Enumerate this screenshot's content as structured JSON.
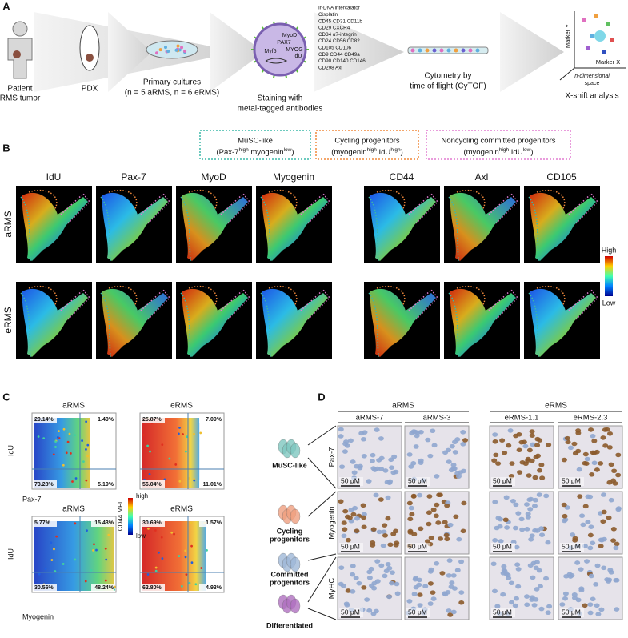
{
  "panel_a": {
    "label": "A",
    "patient": [
      "Patient",
      "RMS tumor"
    ],
    "pdx": "PDX",
    "cultures": [
      "Primary cultures",
      "(n = 5 aRMS, n = 6 eRMS)"
    ],
    "cell_markers": [
      "MyoD",
      "PAX7",
      "MYOG",
      "Myf5",
      "IdU"
    ],
    "staining": [
      "Staining with",
      "metal-tagged antibodies"
    ],
    "antibody_list": [
      "Ir-DNA intercalator",
      "Cisplatin",
      "CD45 CD31 CD11b",
      "CD29 CXCR4",
      "CD34 α7-integrin",
      "CD24 CD56 CD82",
      "CD105 CD106",
      "CD9 CD44 CD49a",
      "CD90 CD140 CD146",
      "CD298 Axl"
    ],
    "cytof": [
      "Cytometry by",
      "time of flight (CyTOF)"
    ],
    "xshift": {
      "axis_y": "Marker Y",
      "axis_x": "Marker X",
      "space": [
        "n-dimensional",
        "space"
      ],
      "caption": "X-shift analysis"
    }
  },
  "panel_b": {
    "label": "B",
    "legend": [
      {
        "name": "MuSC-like",
        "detail": [
          "(Pax-7",
          "high",
          " myogenin",
          "low",
          ")"
        ],
        "color": "#3cb8a8"
      },
      {
        "name": "Cycling progenitors",
        "detail": [
          "(myogenin",
          "high",
          " IdU",
          "high",
          ")"
        ],
        "color": "#f0883a"
      },
      {
        "name": "Noncycling committed progenitors",
        "detail": [
          "(myogenin",
          "high",
          " IdU",
          "low",
          ")"
        ],
        "color": "#e27bd0"
      }
    ],
    "markers": [
      "IdU",
      "Pax-7",
      "MyoD",
      "Myogenin",
      "CD44",
      "Axl",
      "CD105"
    ],
    "rows": [
      "aRMS",
      "eRMS"
    ],
    "colorbar": {
      "high": "High",
      "low": "Low"
    }
  },
  "panel_c": {
    "label": "C",
    "plots": [
      {
        "title": "aRMS",
        "quadrants": [
          "20.14%",
          "1.40%",
          "73.28%",
          "5.19%"
        ]
      },
      {
        "title": "eRMS",
        "quadrants": [
          "25.87%",
          "7.09%",
          "56.04%",
          "11.01%"
        ]
      },
      {
        "title": "aRMS",
        "quadrants": [
          "5.77%",
          "15.43%",
          "30.56%",
          "48.24%"
        ]
      },
      {
        "title": "eRMS",
        "quadrants": [
          "30.69%",
          "1.57%",
          "62.80%",
          "4.93%"
        ]
      }
    ],
    "y_label": "IdU",
    "x_labels": [
      "Pax-7",
      "Myogenin"
    ],
    "colorbar": {
      "title": "CD44 MFI",
      "high": "high",
      "low": "low"
    }
  },
  "panel_d": {
    "label": "D",
    "groups": [
      {
        "name": "aRMS",
        "samples": [
          "aRMS-7",
          "aRMS-3"
        ]
      },
      {
        "name": "eRMS",
        "samples": [
          "eRMS-1.1",
          "eRMS-2.3"
        ]
      }
    ],
    "stains": [
      "Pax-7",
      "Myogenin",
      "MyHC"
    ],
    "populations": [
      [
        "MuSC-like"
      ],
      [
        "Cycling",
        "progenitors"
      ],
      [
        "Committed",
        "progenitors"
      ],
      [
        "Differentiated"
      ]
    ],
    "scale_bar": "50 μM"
  }
}
